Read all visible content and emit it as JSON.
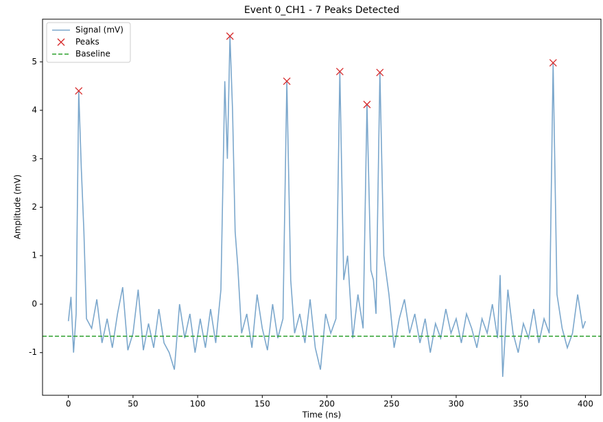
{
  "chart_data": {
    "type": "line",
    "title": "Event 0_CH1 - 7 Peaks Detected",
    "xlabel": "Time (ns)",
    "ylabel": "Amplitude (mV)",
    "xlim": [
      -20,
      412
    ],
    "ylim": [
      -1.88,
      5.88
    ],
    "xticks": [
      0,
      50,
      100,
      150,
      200,
      250,
      300,
      350,
      400
    ],
    "yticks": [
      -1,
      0,
      1,
      2,
      3,
      4,
      5
    ],
    "legend": "upper left",
    "series": [
      {
        "name": "Signal (mV)",
        "kind": "line",
        "color": "#7ba7cc",
        "x": [
          0,
          2,
          4,
          6,
          8,
          10,
          12,
          14,
          18,
          22,
          26,
          30,
          34,
          38,
          42,
          46,
          50,
          54,
          58,
          62,
          66,
          70,
          74,
          78,
          82,
          86,
          90,
          94,
          98,
          102,
          106,
          110,
          114,
          118,
          121,
          123,
          125,
          127,
          129,
          131,
          134,
          138,
          142,
          146,
          150,
          154,
          158,
          162,
          166,
          169,
          172,
          175,
          179,
          183,
          187,
          191,
          195,
          199,
          203,
          207,
          210,
          213,
          216,
          220,
          224,
          228,
          231,
          234,
          236,
          238,
          241,
          244,
          248,
          252,
          256,
          260,
          264,
          268,
          272,
          276,
          280,
          284,
          288,
          292,
          296,
          300,
          304,
          308,
          312,
          316,
          320,
          324,
          328,
          332,
          334,
          336,
          340,
          344,
          348,
          352,
          356,
          360,
          364,
          368,
          372,
          375,
          378,
          382,
          386,
          390,
          394,
          398,
          400
        ],
        "values": [
          -0.35,
          0.15,
          -1.0,
          -0.2,
          4.4,
          2.8,
          1.5,
          -0.3,
          -0.5,
          0.1,
          -0.8,
          -0.3,
          -0.9,
          -0.2,
          0.35,
          -0.95,
          -0.6,
          0.3,
          -0.95,
          -0.4,
          -0.9,
          -0.1,
          -0.8,
          -1.0,
          -1.35,
          0.0,
          -0.7,
          -0.2,
          -1.0,
          -0.3,
          -0.9,
          -0.1,
          -0.8,
          0.3,
          4.6,
          3.0,
          5.53,
          4.0,
          1.5,
          0.8,
          -0.6,
          -0.2,
          -0.9,
          0.2,
          -0.5,
          -0.95,
          0.0,
          -0.7,
          -0.3,
          4.6,
          0.5,
          -0.6,
          -0.2,
          -0.8,
          0.1,
          -0.9,
          -1.35,
          -0.2,
          -0.6,
          -0.3,
          4.8,
          0.5,
          1.0,
          -0.7,
          0.2,
          -0.5,
          4.12,
          0.7,
          0.5,
          -0.2,
          4.78,
          1.0,
          0.2,
          -0.9,
          -0.3,
          0.1,
          -0.6,
          -0.2,
          -0.8,
          -0.3,
          -1.0,
          -0.4,
          -0.7,
          -0.1,
          -0.6,
          -0.3,
          -0.8,
          -0.2,
          -0.5,
          -0.9,
          -0.3,
          -0.6,
          0.0,
          -0.7,
          0.6,
          -1.5,
          0.3,
          -0.6,
          -1.0,
          -0.4,
          -0.7,
          -0.1,
          -0.8,
          -0.3,
          -0.6,
          4.98,
          0.2,
          -0.5,
          -0.9,
          -0.6,
          0.2,
          -0.5,
          -0.35
        ]
      },
      {
        "name": "Peaks",
        "kind": "scatter",
        "color": "#d62728",
        "x": [
          8,
          125,
          169,
          210,
          231,
          241,
          375
        ],
        "values": [
          4.4,
          5.53,
          4.6,
          4.8,
          4.12,
          4.78,
          4.98
        ]
      },
      {
        "name": "Baseline",
        "kind": "hline",
        "color": "#2ca02c",
        "values": [
          -0.66
        ]
      }
    ]
  }
}
